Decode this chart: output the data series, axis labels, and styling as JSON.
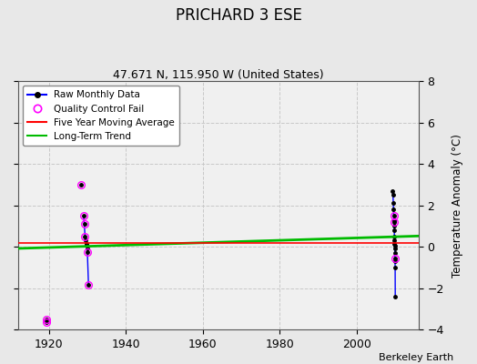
{
  "title": "PRICHARD 3 ESE",
  "subtitle": "47.671 N, 115.950 W (United States)",
  "ylabel": "Temperature Anomaly (°C)",
  "credit": "Berkeley Earth",
  "xlim": [
    1912,
    2016
  ],
  "ylim": [
    -4,
    8
  ],
  "yticks": [
    -4,
    -2,
    0,
    2,
    4,
    6,
    8
  ],
  "xticks": [
    1920,
    1940,
    1960,
    1980,
    2000
  ],
  "fig_bg_color": "#e8e8e8",
  "plot_bg_color": "#f0f0f0",
  "cluster1": {
    "points": [
      [
        1919.3,
        -3.5
      ],
      [
        1919.3,
        -3.65
      ]
    ],
    "line_x": [
      1919.3,
      1919.3
    ],
    "line_y": [
      -3.5,
      -3.65
    ]
  },
  "cluster2": {
    "points": [
      [
        1928.3,
        3.0
      ],
      [
        1929.0,
        1.5
      ],
      [
        1929.2,
        1.1
      ],
      [
        1929.4,
        0.5
      ],
      [
        1929.6,
        0.3
      ],
      [
        1929.7,
        0.15
      ],
      [
        1929.8,
        0.1
      ],
      [
        1929.9,
        -0.1
      ],
      [
        1930.0,
        -0.25
      ],
      [
        1930.3,
        -1.85
      ]
    ],
    "line_points": [
      [
        1929.0,
        1.5
      ],
      [
        1929.2,
        1.1
      ],
      [
        1929.4,
        0.5
      ],
      [
        1929.6,
        0.3
      ],
      [
        1929.7,
        0.15
      ],
      [
        1929.8,
        0.1
      ],
      [
        1929.9,
        -0.1
      ],
      [
        1930.0,
        -0.25
      ],
      [
        1930.3,
        -1.85
      ]
    ],
    "qc_points": [
      [
        1928.3,
        3.0
      ],
      [
        1929.0,
        1.5
      ],
      [
        1929.2,
        1.1
      ],
      [
        1929.4,
        0.5
      ],
      [
        1930.0,
        -0.25
      ],
      [
        1930.3,
        -1.85
      ]
    ]
  },
  "cluster3": {
    "line_points": [
      [
        2009.3,
        2.7
      ],
      [
        2009.4,
        2.5
      ],
      [
        2009.5,
        2.1
      ],
      [
        2009.55,
        1.8
      ],
      [
        2009.6,
        1.5
      ],
      [
        2009.65,
        1.3
      ],
      [
        2009.7,
        1.2
      ],
      [
        2009.72,
        1.0
      ],
      [
        2009.75,
        0.8
      ],
      [
        2009.77,
        0.5
      ],
      [
        2009.8,
        0.3
      ],
      [
        2009.82,
        0.15
      ],
      [
        2009.85,
        0.05
      ],
      [
        2009.87,
        -0.1
      ],
      [
        2009.9,
        -0.3
      ],
      [
        2009.92,
        -0.55
      ],
      [
        2009.95,
        -0.7
      ],
      [
        2009.97,
        -1.0
      ],
      [
        2010.0,
        -2.4
      ]
    ],
    "qc_points": [
      [
        2009.6,
        1.5
      ],
      [
        2009.7,
        1.2
      ],
      [
        2009.92,
        -0.55
      ]
    ]
  },
  "long_term_trend": {
    "x": [
      1912,
      2016
    ],
    "y": [
      -0.08,
      0.52
    ]
  },
  "five_year_avg": {
    "x": [
      1912,
      2016
    ],
    "y": [
      0.18,
      0.18
    ]
  },
  "colors": {
    "raw_line": "#0000ff",
    "raw_dot": "#000000",
    "qc_fail": "#ff00ff",
    "five_year": "#ff0000",
    "long_term": "#00bb00",
    "grid": "#c8c8c8"
  }
}
